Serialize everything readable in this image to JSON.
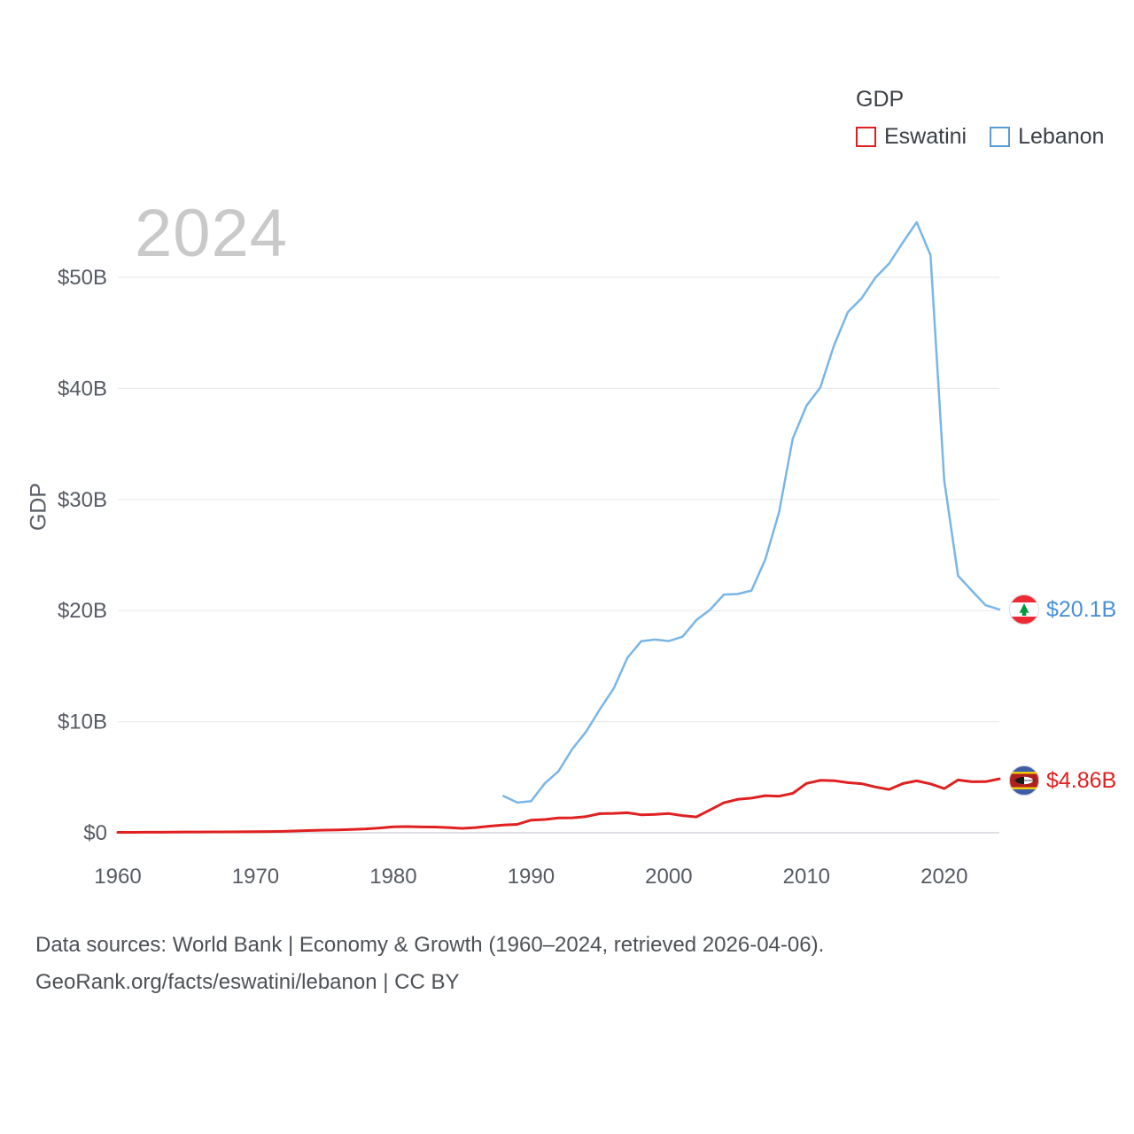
{
  "watermark": "2024",
  "y_axis_title": "GDP",
  "legend": {
    "title": "GDP",
    "items": [
      {
        "label": "Eswatini",
        "color": "#e02020"
      },
      {
        "label": "Lebanon",
        "color": "#5b9bd5"
      }
    ]
  },
  "end_labels": [
    {
      "series": "Lebanon",
      "label": "$20.1B",
      "color": "#4a90d9"
    },
    {
      "series": "Eswatini",
      "label": "$4.86B",
      "color": "#e02020"
    }
  ],
  "footer": {
    "line1": "Data sources: World Bank | Economy & Growth (1960–2024, retrieved 2026-04-06).",
    "line2": "GeoRank.org/facts/eswatini/lebanon | CC BY"
  },
  "chart_data": {
    "type": "line",
    "title": "GDP",
    "xlabel": "",
    "ylabel": "GDP",
    "xlim": [
      1960,
      2024
    ],
    "ylim": [
      0,
      55
    ],
    "grid": true,
    "legend_position": "top-right",
    "x_ticks": [
      1960,
      1970,
      1980,
      1990,
      2000,
      2010,
      2020
    ],
    "y_ticks": [
      0,
      10,
      20,
      30,
      40,
      50
    ],
    "y_tick_labels": [
      "$0",
      "$10B",
      "$20B",
      "$30B",
      "$40B",
      "$50B"
    ],
    "series": [
      {
        "name": "Lebanon",
        "color": "#79b6e8",
        "stroke_width": 2.5,
        "x": [
          1988,
          1989,
          1990,
          1991,
          1992,
          1993,
          1994,
          1995,
          1996,
          1997,
          1998,
          1999,
          2000,
          2001,
          2002,
          2003,
          2004,
          2005,
          2006,
          2007,
          2008,
          2009,
          2010,
          2011,
          2012,
          2013,
          2014,
          2015,
          2016,
          2017,
          2018,
          2019,
          2020,
          2021,
          2022,
          2023,
          2024
        ],
        "values": [
          3.31,
          2.72,
          2.84,
          4.45,
          5.55,
          7.54,
          9.11,
          11.12,
          12.99,
          15.75,
          17.25,
          17.39,
          17.26,
          17.65,
          19.15,
          20.08,
          21.44,
          21.49,
          21.8,
          24.58,
          28.83,
          35.48,
          38.44,
          40.08,
          43.87,
          46.87,
          48.1,
          49.97,
          51.24,
          53.15,
          54.96,
          51.99,
          31.72,
          23.13,
          21.8,
          20.48,
          20.1
        ]
      },
      {
        "name": "Eswatini",
        "color": "#e02020",
        "stroke_width": 3,
        "x": [
          1960,
          1961,
          1962,
          1963,
          1964,
          1965,
          1966,
          1967,
          1968,
          1969,
          1970,
          1971,
          1972,
          1973,
          1974,
          1975,
          1976,
          1977,
          1978,
          1979,
          1980,
          1981,
          1982,
          1983,
          1984,
          1985,
          1986,
          1987,
          1988,
          1989,
          1990,
          1991,
          1992,
          1993,
          1994,
          1995,
          1996,
          1997,
          1998,
          1999,
          2000,
          2001,
          2002,
          2003,
          2004,
          2005,
          2006,
          2007,
          2008,
          2009,
          2010,
          2011,
          2012,
          2013,
          2014,
          2015,
          2016,
          2017,
          2018,
          2019,
          2020,
          2021,
          2022,
          2023,
          2024
        ],
        "values": [
          0.04,
          0.04,
          0.05,
          0.05,
          0.06,
          0.07,
          0.07,
          0.08,
          0.08,
          0.09,
          0.1,
          0.11,
          0.13,
          0.17,
          0.21,
          0.24,
          0.26,
          0.3,
          0.35,
          0.43,
          0.54,
          0.56,
          0.53,
          0.52,
          0.47,
          0.4,
          0.47,
          0.6,
          0.7,
          0.76,
          1.14,
          1.2,
          1.33,
          1.35,
          1.46,
          1.72,
          1.75,
          1.8,
          1.62,
          1.66,
          1.73,
          1.55,
          1.43,
          2.06,
          2.7,
          3.01,
          3.12,
          3.34,
          3.29,
          3.55,
          4.44,
          4.72,
          4.69,
          4.51,
          4.42,
          4.12,
          3.9,
          4.43,
          4.67,
          4.4,
          3.98,
          4.75,
          4.59,
          4.6,
          4.86
        ]
      }
    ]
  }
}
